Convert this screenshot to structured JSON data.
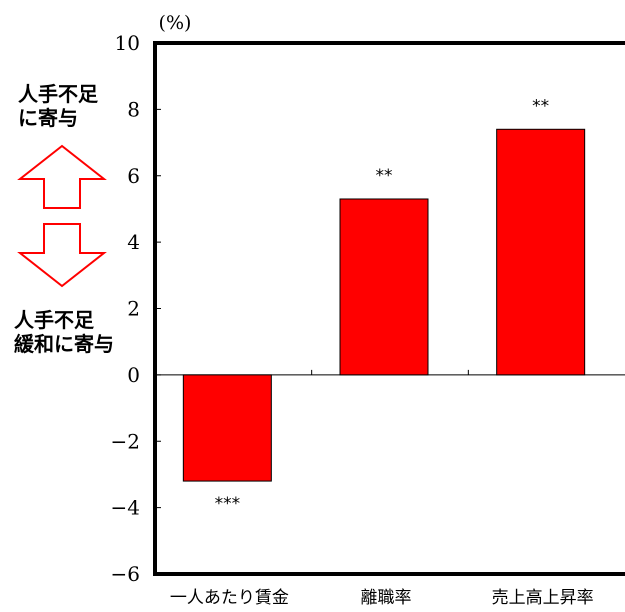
{
  "chart_data": {
    "type": "bar",
    "unit": "(%)",
    "categories": [
      "一人あたり賃金",
      "離職率",
      "売上高上昇率"
    ],
    "values": [
      -3.2,
      5.3,
      7.4
    ],
    "significance": [
      "***",
      "**",
      "**"
    ],
    "ylim": [
      -6,
      10
    ],
    "yticks": [
      10,
      8,
      6,
      4,
      2,
      0,
      -2,
      -4,
      -6
    ],
    "ytick_labels": [
      "10",
      "8",
      "6",
      "4",
      "2",
      "0",
      "−2",
      "−4",
      "−6"
    ],
    "grid": false,
    "bar_color": "#ff0000",
    "annotations": {
      "up": {
        "line1": "人手不足",
        "line2": "に寄与"
      },
      "down": {
        "line1": "人手不足",
        "line2": "緩和に寄与"
      }
    },
    "arrow_color": "#ff0000"
  }
}
